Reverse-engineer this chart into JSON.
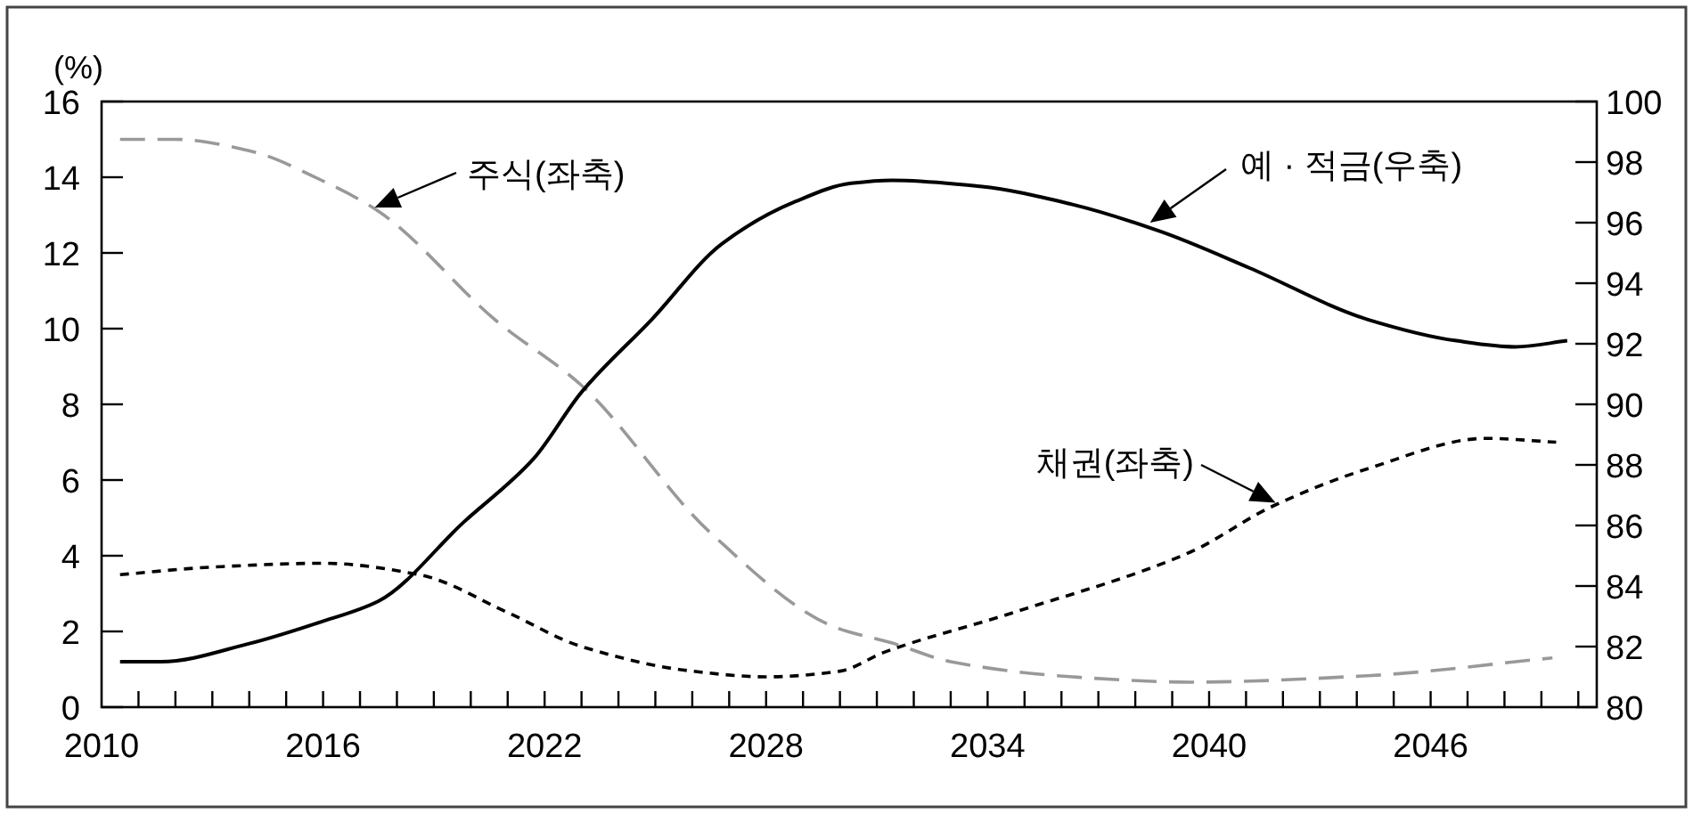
{
  "chart_data": {
    "type": "line",
    "ylabel": "(%)",
    "legend": false,
    "grid": false,
    "annotations": [
      {
        "text": "주식(좌축)",
        "x": 2017.4,
        "y": 13.2
      },
      {
        "text": "예 · 적금(우축)",
        "x": 2038.4,
        "y": 12.8
      },
      {
        "text": "채권(좌축)",
        "x": 2041.8,
        "y": 5.4
      }
    ],
    "xlim": [
      2010,
      2050.5
    ],
    "xticks": [
      {
        "value": 2010,
        "label": "2010"
      },
      {
        "value": 2011,
        "label": null
      },
      {
        "value": 2012,
        "label": null
      },
      {
        "value": 2013,
        "label": null
      },
      {
        "value": 2014,
        "label": null
      },
      {
        "value": 2015,
        "label": null
      },
      {
        "value": 2016,
        "label": "2016"
      },
      {
        "value": 2017,
        "label": null
      },
      {
        "value": 2018,
        "label": null
      },
      {
        "value": 2019,
        "label": null
      },
      {
        "value": 2020,
        "label": null
      },
      {
        "value": 2021,
        "label": null
      },
      {
        "value": 2022,
        "label": "2022"
      },
      {
        "value": 2023,
        "label": null
      },
      {
        "value": 2024,
        "label": null
      },
      {
        "value": 2025,
        "label": null
      },
      {
        "value": 2026,
        "label": null
      },
      {
        "value": 2027,
        "label": null
      },
      {
        "value": 2028,
        "label": "2028"
      },
      {
        "value": 2029,
        "label": null
      },
      {
        "value": 2030,
        "label": null
      },
      {
        "value": 2031,
        "label": null
      },
      {
        "value": 2032,
        "label": null
      },
      {
        "value": 2033,
        "label": null
      },
      {
        "value": 2034,
        "label": "2034"
      },
      {
        "value": 2035,
        "label": null
      },
      {
        "value": 2036,
        "label": null
      },
      {
        "value": 2037,
        "label": null
      },
      {
        "value": 2038,
        "label": null
      },
      {
        "value": 2039,
        "label": null
      },
      {
        "value": 2040,
        "label": "2040"
      },
      {
        "value": 2041,
        "label": null
      },
      {
        "value": 2042,
        "label": null
      },
      {
        "value": 2043,
        "label": null
      },
      {
        "value": 2044,
        "label": null
      },
      {
        "value": 2045,
        "label": null
      },
      {
        "value": 2046,
        "label": "2046"
      },
      {
        "value": 2047,
        "label": null
      },
      {
        "value": 2048,
        "label": null
      },
      {
        "value": 2049,
        "label": null
      },
      {
        "value": 2050,
        "label": null
      }
    ],
    "ylim": [
      0,
      16
    ],
    "yticks": [
      0,
      2,
      4,
      6,
      8,
      10,
      12,
      14,
      16
    ],
    "y2lim": [
      80,
      100
    ],
    "y2ticks": [
      80,
      82,
      84,
      86,
      88,
      90,
      92,
      94,
      96,
      98,
      100
    ],
    "series": [
      {
        "color": "#999999",
        "line_style": "dashed",
        "x": [
          2010.5,
          2012,
          2014,
          2016,
          2017.5,
          2020.7,
          2023,
          2026.5,
          2029.9,
          2031.4,
          2033,
          2036.3,
          2039.5,
          2044.3,
          2049.3
        ],
        "values": [
          15,
          15,
          14.7,
          13.9,
          13.1,
          10.2,
          8.5,
          4.6,
          2.1,
          1.7,
          1.2,
          0.8,
          0.66,
          0.83,
          1.3
        ]
      },
      {
        "color": "#000000",
        "line_style": "solid",
        "axis": "y2",
        "x": [
          2010.5,
          2011.6,
          2014,
          2015.9,
          2017.5,
          2019.8,
          2021.7,
          2023,
          2024.9,
          2026.8,
          2028.8,
          2030.3,
          2031.4,
          2033.8,
          2036.3,
          2038.7,
          2041.1,
          2044.3,
          2046.7,
          2048.3,
          2049.7
        ],
        "values": [
          81.5,
          81.5,
          82.1,
          82.8,
          83.5,
          86.1,
          88.2,
          90.4,
          92.8,
          95.3,
          96.7,
          97.3,
          97.4,
          97.2,
          96.6,
          95.7,
          94.5,
          92.8,
          92.1,
          91.9,
          92.1
        ]
      },
      {
        "color": "#000000",
        "line_style": "dotted",
        "x": [
          2010.5,
          2013,
          2016,
          2018.6,
          2021,
          2023,
          2026,
          2028,
          2030,
          2031.2,
          2034.7,
          2039.5,
          2041.7,
          2044.3,
          2047.5,
          2049.4
        ],
        "values": [
          3.5,
          3.7,
          3.8,
          3.5,
          2.5,
          1.6,
          0.95,
          0.8,
          0.95,
          1.45,
          2.5,
          4.1,
          5.3,
          6.3,
          7.1,
          7.0
        ]
      }
    ]
  }
}
